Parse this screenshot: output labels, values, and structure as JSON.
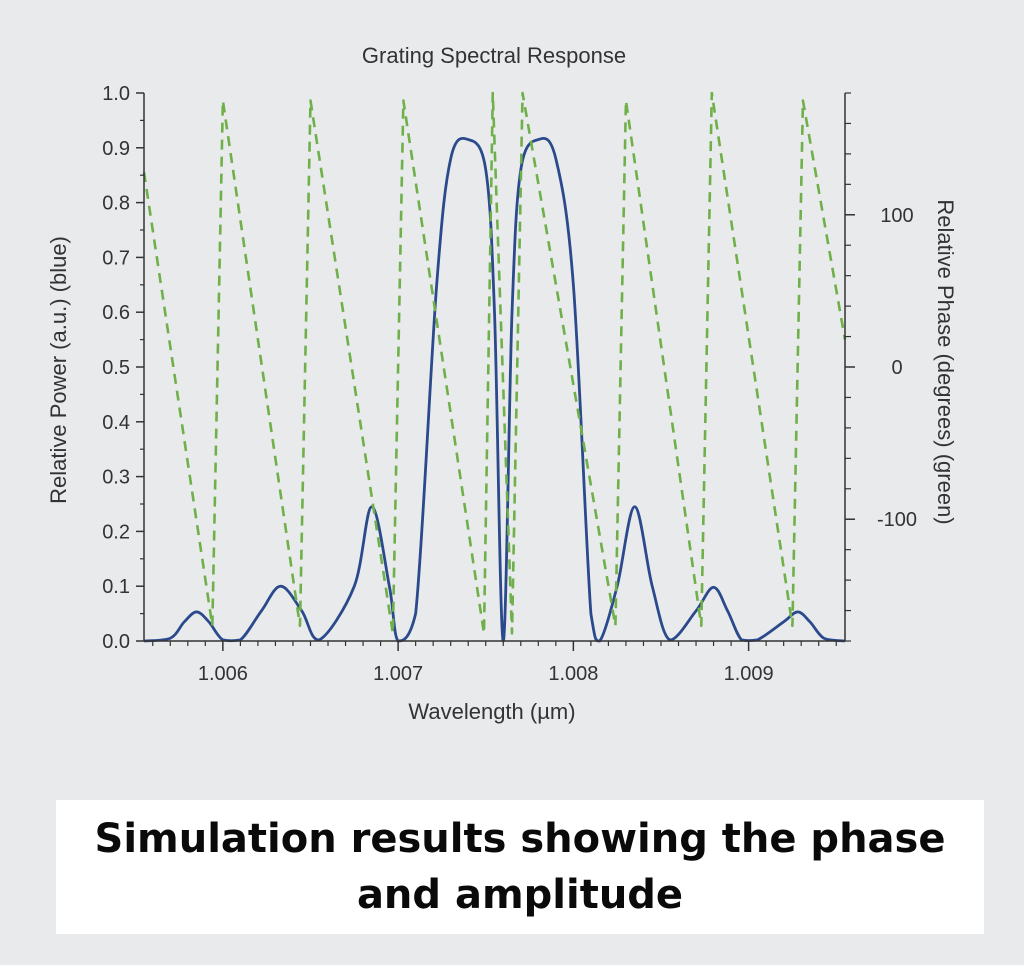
{
  "chart_data": {
    "type": "line",
    "title": "Grating Spectral Response",
    "xlabel": "Wavelength (µm)",
    "ylabel": "Relative Power (a.u.) (blue)",
    "y2label": "Relative Phase (degrees) (green)",
    "xlim": [
      1.00555,
      1.00955
    ],
    "ylim": [
      0.0,
      1.0
    ],
    "y2lim": [
      -180,
      180
    ],
    "xticks": [
      "1.006",
      "1.007",
      "1.008",
      "1.009"
    ],
    "xtick_values": [
      1.006,
      1.007,
      1.008,
      1.009
    ],
    "yticks": [
      "0.0",
      "0.1",
      "0.2",
      "0.3",
      "0.4",
      "0.5",
      "0.6",
      "0.7",
      "0.8",
      "0.9",
      "1.0"
    ],
    "ytick_values": [
      0.0,
      0.1,
      0.2,
      0.3,
      0.4,
      0.5,
      0.6,
      0.7,
      0.8,
      0.9,
      1.0
    ],
    "y2ticks": [
      "100",
      "0",
      "-100"
    ],
    "y2tick_values": [
      100,
      0,
      -100
    ],
    "grid": false,
    "series": [
      {
        "axis": "left",
        "color": "#2b4a8c",
        "style": "solid",
        "x": [
          1.00555,
          1.0057,
          1.00578,
          1.00585,
          1.00592,
          1.006,
          1.0061,
          1.00622,
          1.00633,
          1.00645,
          1.00655,
          1.00675,
          1.00685,
          1.00695,
          1.007,
          1.0071,
          1.00722,
          1.0073,
          1.0074,
          1.0075,
          1.00755,
          1.0076,
          1.00765,
          1.0077,
          1.0078,
          1.0079,
          1.008,
          1.0081,
          1.00815,
          1.00825,
          1.00835,
          1.00845,
          1.00855,
          1.0087,
          1.0088,
          1.00888,
          1.00896,
          1.00905,
          1.0092,
          1.00928,
          1.00935,
          1.00943,
          1.00955
        ],
        "y": [
          0.0,
          0.005,
          0.035,
          0.053,
          0.035,
          0.002,
          0.002,
          0.055,
          0.1,
          0.055,
          0.002,
          0.1,
          0.245,
          0.1,
          0.0,
          0.05,
          0.65,
          0.88,
          0.915,
          0.86,
          0.6,
          0.0,
          0.6,
          0.86,
          0.915,
          0.88,
          0.65,
          0.05,
          0.0,
          0.1,
          0.245,
          0.1,
          0.002,
          0.055,
          0.098,
          0.055,
          0.002,
          0.002,
          0.035,
          0.053,
          0.035,
          0.005,
          0.0
        ]
      },
      {
        "axis": "right",
        "color": "#6fb04a",
        "style": "dashed",
        "x": [
          1.00555,
          1.00594,
          1.006,
          1.00644,
          1.0065,
          1.00697,
          1.00703,
          1.00749,
          1.00754,
          1.00765,
          1.00771,
          1.00824,
          1.0083,
          1.00873,
          1.00879,
          1.00925,
          1.00931,
          1.00955
        ],
        "y": [
          128,
          -170,
          175,
          -170,
          175,
          -175,
          175,
          -175,
          180,
          -175,
          180,
          -170,
          175,
          -170,
          180,
          -170,
          175,
          18
        ]
      }
    ]
  },
  "caption": "Simulation results showing the phase and amplitude"
}
